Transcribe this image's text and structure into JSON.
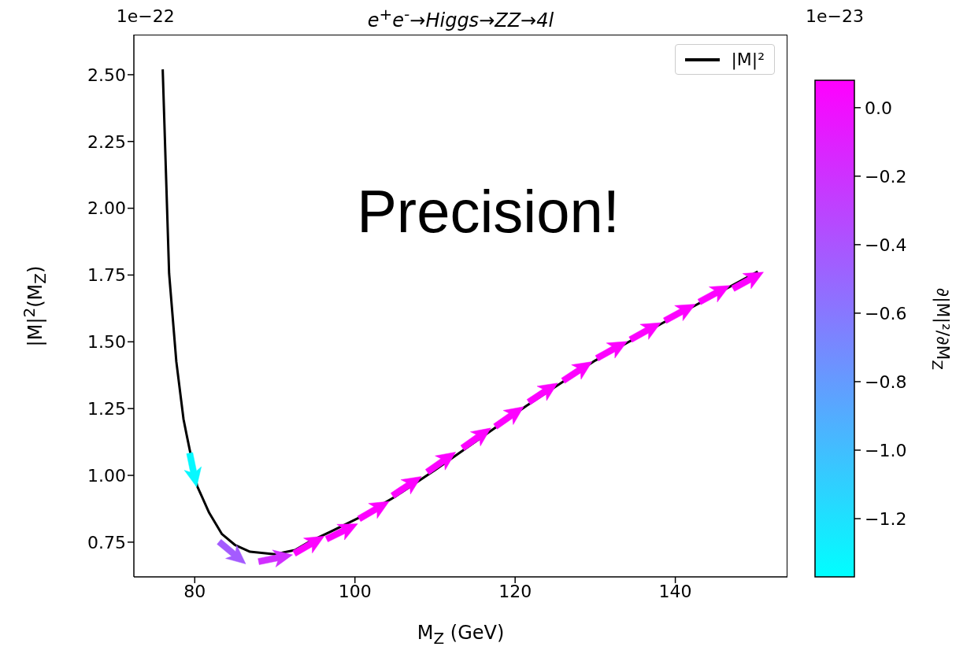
{
  "chart_data": {
    "type": "line",
    "title": "e$^{+}$e$^{-}$→Higgs→ZZ→4l",
    "xlabel": "M$_{Z}$ (GeV)",
    "ylabel": "|M|$^{2}$(M$_{Z}$)",
    "clabel": "∂|M|²/∂M$_{Z}$",
    "annotations": [
      "Precision!",
      "1e−22",
      "1e−23"
    ],
    "xlim": [
      72.4,
      154
    ],
    "xticks": [
      80,
      100,
      120,
      140
    ],
    "ylim": [
      0.62,
      2.65
    ],
    "yticks": [
      {
        "value": 0.75,
        "label": "0.75"
      },
      {
        "value": 1,
        "label": "1.00"
      },
      {
        "value": 1.25,
        "label": "1.25"
      },
      {
        "value": 1.5,
        "label": "1.50"
      },
      {
        "value": 1.75,
        "label": "1.75"
      },
      {
        "value": 2,
        "label": "2.00"
      },
      {
        "value": 2.25,
        "label": "2.25"
      },
      {
        "value": 2.5,
        "label": "2.50"
      }
    ],
    "clim": [
      -1.37,
      0.08
    ],
    "cticks": [
      {
        "value": 0,
        "label": "0.0"
      },
      {
        "value": -0.2,
        "label": "−0.2"
      },
      {
        "value": -0.4,
        "label": "−0.4"
      },
      {
        "value": -0.6,
        "label": "−0.6"
      },
      {
        "value": -0.8,
        "label": "−0.8"
      },
      {
        "value": -1,
        "label": "−1.0"
      },
      {
        "value": -1.2,
        "label": "−1.2"
      }
    ],
    "legend": "top right",
    "series": [
      {
        "name": "|M|²",
        "type": "line",
        "color": "#000000",
        "x": [
          76.0,
          76.8,
          77.7,
          78.6,
          79.0,
          80.3,
          81.8,
          83.4,
          85,
          86.9,
          90,
          92.5,
          94.4,
          97,
          100.4,
          105,
          110,
          121.4,
          130,
          138.4,
          150.3
        ],
        "values": [
          2.52,
          1.756,
          1.426,
          1.21,
          1.15,
          0.96,
          0.86,
          0.78,
          0.74,
          0.714,
          0.705,
          0.72,
          0.753,
          0.79,
          0.84,
          0.92,
          1.02,
          1.26,
          1.43,
          1.57,
          1.763
        ]
      },
      {
        "type": "scatter",
        "x": [
          79.8,
          84.7,
          90.1,
          94.3,
          98.4,
          102.4,
          106.5,
          110.8,
          115.2,
          119.3,
          123.5,
          127.8,
          132.1,
          136.3,
          140.6,
          144.9,
          149.1
        ],
        "values": [
          1.02,
          0.71,
          0.69,
          0.74,
          0.79,
          0.87,
          0.96,
          1.05,
          1.14,
          1.22,
          1.31,
          1.39,
          1.47,
          1.54,
          1.61,
          1.68,
          1.73
        ],
        "colors": [
          "#07f8ff",
          "#a45bff",
          "#d12eff",
          "#fd02ff",
          "#fd02ff",
          "#fd02ff",
          "#fd02ff",
          "#fd02ff",
          "#fd02ff",
          "#fd02ff",
          "#fd02ff",
          "#fd02ff",
          "#fd02ff",
          "#fd02ff",
          "#fd02ff",
          "#fd02ff",
          "#fd02ff"
        ],
        "cvalues": [
          -1.33,
          -0.44,
          -0.18,
          0.05,
          0.05,
          0.05,
          0.05,
          0.05,
          0.05,
          0.05,
          0.05,
          0.05,
          0.05,
          0.05,
          0.05,
          0.05,
          0.05
        ]
      }
    ]
  }
}
